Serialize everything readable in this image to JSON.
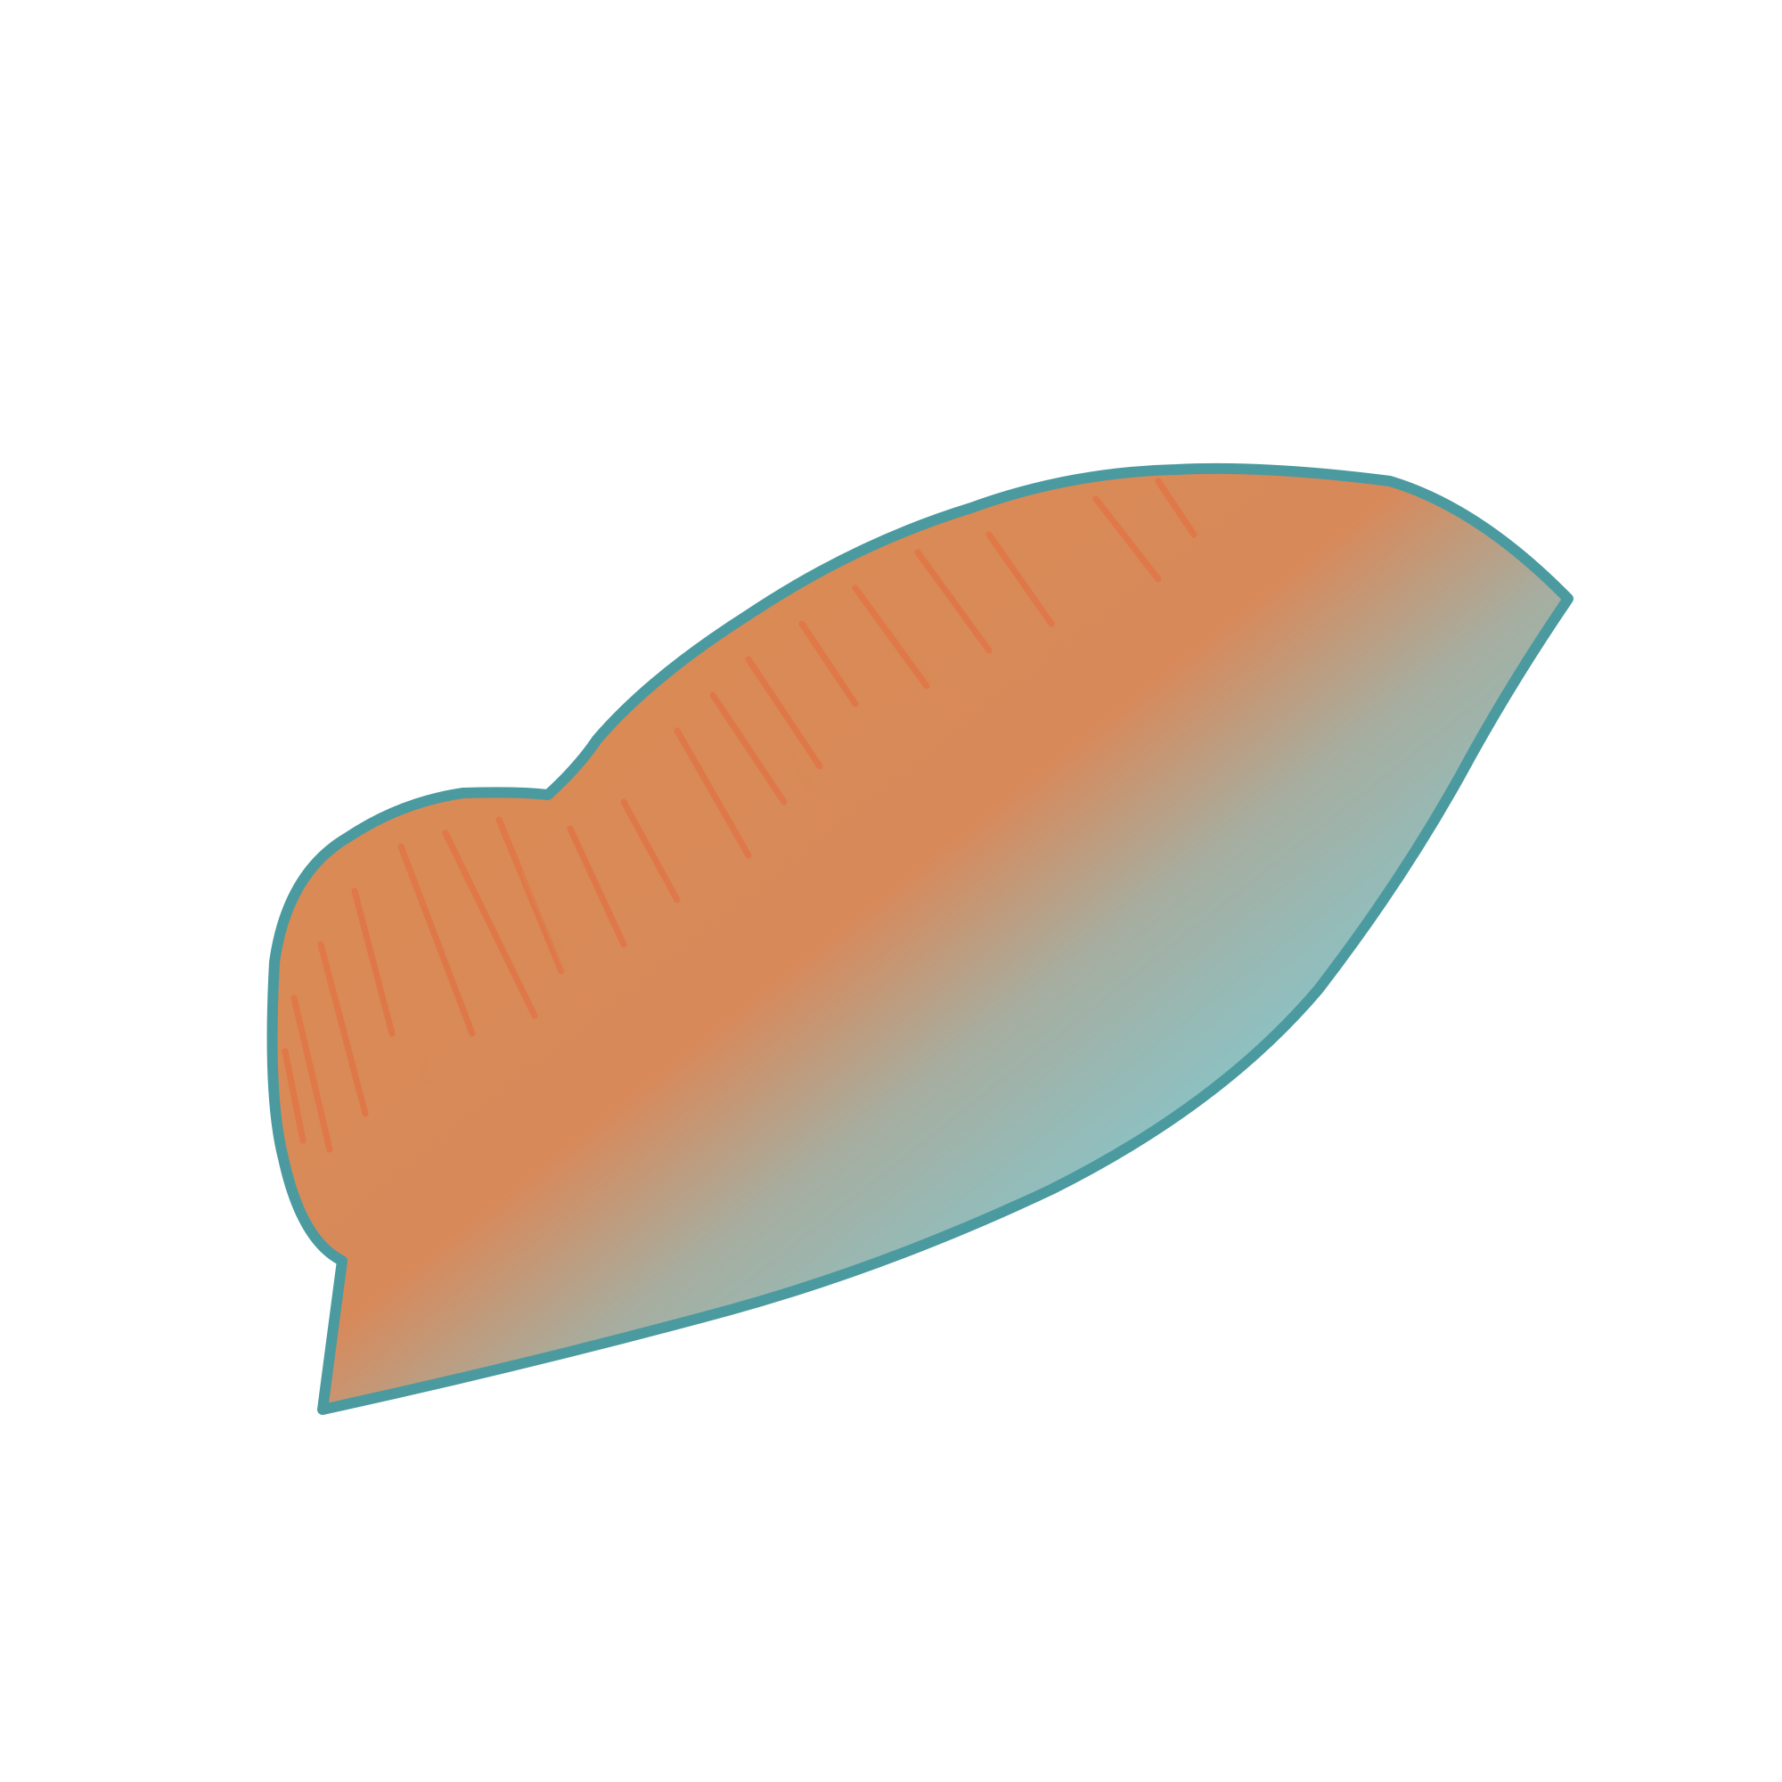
{
  "illustration": {
    "subject": "wing-shape",
    "colors": {
      "background": "#ffffff",
      "outline": "#4a9aa0",
      "fill_teal": "#8ac3c6",
      "fill_orange": "#d98a55",
      "stripe": "#e56a3f"
    }
  }
}
